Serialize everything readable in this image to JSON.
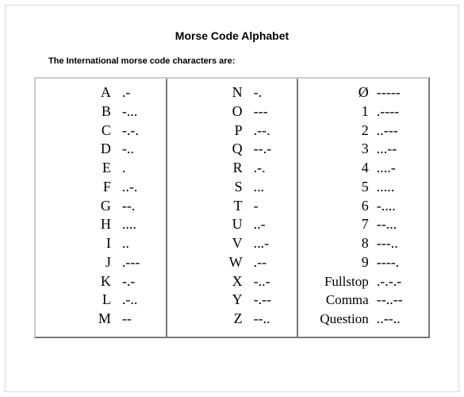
{
  "title": "Morse Code Alphabet",
  "subtitle": "The International morse code characters are:",
  "columns": [
    [
      {
        "char": "A",
        "code": ".-"
      },
      {
        "char": "B",
        "code": "-..."
      },
      {
        "char": "C",
        "code": "-.-."
      },
      {
        "char": "D",
        "code": "-.."
      },
      {
        "char": "E",
        "code": "."
      },
      {
        "char": "F",
        "code": "..-."
      },
      {
        "char": "G",
        "code": "--."
      },
      {
        "char": "H",
        "code": "...."
      },
      {
        "char": "I",
        "code": ".."
      },
      {
        "char": "J",
        "code": ".---"
      },
      {
        "char": "K",
        "code": "-.-"
      },
      {
        "char": "L",
        "code": ".-.."
      },
      {
        "char": "M",
        "code": "--"
      }
    ],
    [
      {
        "char": "N",
        "code": "-."
      },
      {
        "char": "O",
        "code": "---"
      },
      {
        "char": "P",
        "code": ".--."
      },
      {
        "char": "Q",
        "code": "--.-"
      },
      {
        "char": "R",
        "code": ".-."
      },
      {
        "char": "S",
        "code": "..."
      },
      {
        "char": "T",
        "code": "-"
      },
      {
        "char": "U",
        "code": "..-"
      },
      {
        "char": "V",
        "code": "...-"
      },
      {
        "char": "W",
        "code": ".--"
      },
      {
        "char": "X",
        "code": "-..-"
      },
      {
        "char": "Y",
        "code": "-.--"
      },
      {
        "char": "Z",
        "code": "--.."
      }
    ],
    [
      {
        "char": "Ø",
        "code": "-----"
      },
      {
        "char": "1",
        "code": ".----"
      },
      {
        "char": "2",
        "code": "..---"
      },
      {
        "char": "3",
        "code": "...--"
      },
      {
        "char": "4",
        "code": "....-"
      },
      {
        "char": "5",
        "code": "....."
      },
      {
        "char": "6",
        "code": "-...."
      },
      {
        "char": "7",
        "code": "--..."
      },
      {
        "char": "8",
        "code": "---.."
      },
      {
        "char": "9",
        "code": "----."
      },
      {
        "char": "Fullstop",
        "code": ".-.-.-",
        "word": true
      },
      {
        "char": "Comma",
        "code": "--..--",
        "word": true
      },
      {
        "char": "Question",
        "code": "..--..",
        "word": true
      }
    ]
  ],
  "style": {
    "page_bg": "#ffffff",
    "outer_border": "#d6d6d6",
    "table_border_style": "outset",
    "table_border_color": "#cccccc",
    "cell_border_style": "inset",
    "title_font": "Arial",
    "title_fontsize": 14,
    "subtitle_fontsize": 11,
    "body_font": "Times New Roman",
    "body_fontsize": 18,
    "word_fontsize": 17,
    "text_color": "#000000"
  }
}
